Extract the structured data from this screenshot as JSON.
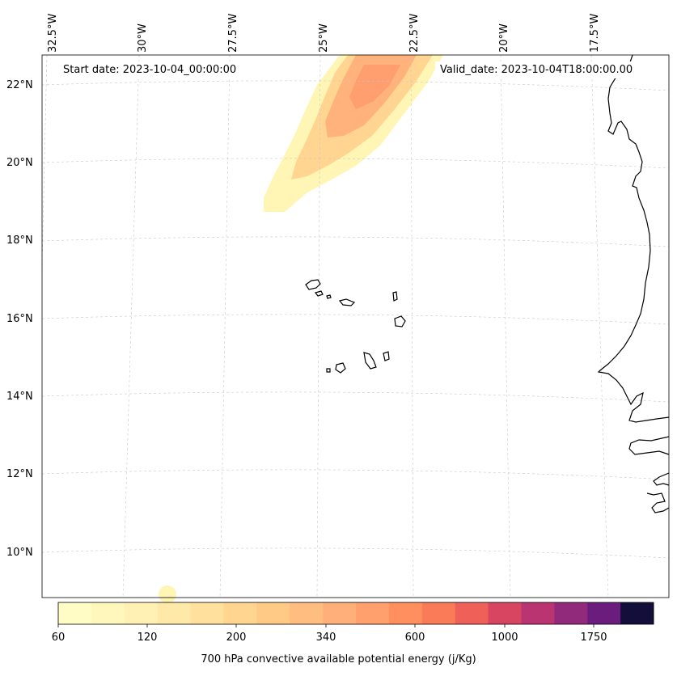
{
  "map": {
    "start_label": "Start date: 2023-10-04_00:00:00",
    "valid_label": "Valid_date: 2023-10-04T18:00:00.00",
    "longitude_labels": [
      "32.5°W",
      "30°W",
      "27.5°W",
      "25°W",
      "22.5°W",
      "20°W",
      "17.5°W"
    ],
    "latitude_labels": [
      "22°N",
      "20°N",
      "18°N",
      "16°N",
      "14°N",
      "12°N",
      "10°N"
    ]
  },
  "colorbar": {
    "title": "700 hPa convective available potential energy (j/Kg)",
    "tick_labels": [
      "60",
      "120",
      "200",
      "340",
      "600",
      "1000",
      "1750"
    ],
    "colors": [
      "#fffdc5",
      "#fff7bc",
      "#fff0b3",
      "#ffe9a8",
      "#ffe09c",
      "#ffd58f",
      "#ffc986",
      "#ffbd7f",
      "#ffb07a",
      "#ffa06d",
      "#ff8f5f",
      "#f97b58",
      "#ee6058",
      "#d84560",
      "#b93470",
      "#922a7b",
      "#6b1d7e",
      "#140f3a"
    ]
  },
  "styles": {
    "coast_color": "#000000",
    "grid_color": "#c8c8c8",
    "cape_light": "#fff5b5",
    "cape_mid": "#ffd591",
    "cape_high": "#ffb27c",
    "cape_peak": "#ff9e6e"
  }
}
